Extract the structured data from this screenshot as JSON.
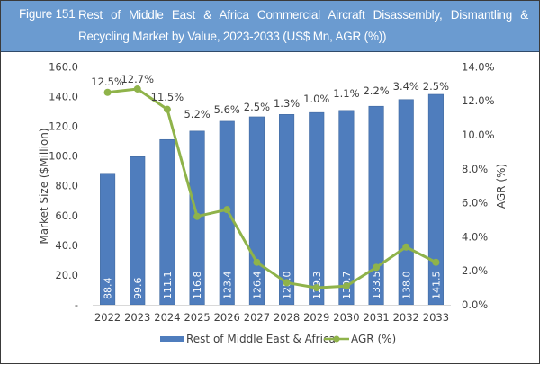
{
  "header": {
    "figure_label": "Figure 151",
    "title": "Rest of Middle East & Africa Commercial Aircraft Disassembly, Dismantling & Recycling Market by Value, 2023-2033 (US$ Mn, AGR (%))"
  },
  "colors": {
    "header_bg": "#6b9bd0",
    "bar": "#4f7dbd",
    "line": "#8fb34a",
    "text": "#404040"
  },
  "chart_data": {
    "type": "bar",
    "title": "Rest of Middle East & Africa Commercial Aircraft Disassembly, Dismantling & Recycling Market by Value, 2023-2033 (US$ Mn, AGR (%))",
    "categories": [
      "2022",
      "2023",
      "2024",
      "2025",
      "2026",
      "2027",
      "2028",
      "2029",
      "2030",
      "2031",
      "2032",
      "2033"
    ],
    "series": [
      {
        "name": "Rest of Middle East & Africa",
        "type": "bar",
        "axis": "left",
        "values": [
          88.4,
          99.6,
          111.1,
          116.8,
          123.4,
          126.4,
          128.0,
          129.3,
          130.7,
          133.5,
          138.0,
          141.5
        ],
        "labels": [
          "88.4",
          "99.6",
          "111.1",
          "116.8",
          "123.4",
          "126.4",
          "128.0",
          "129.3",
          "130.7",
          "133.5",
          "138.0",
          "141.5"
        ]
      },
      {
        "name": "AGR (%)",
        "type": "line",
        "axis": "right",
        "values": [
          12.5,
          12.7,
          11.5,
          5.2,
          5.6,
          2.5,
          1.3,
          1.0,
          1.1,
          2.2,
          3.4,
          2.5
        ],
        "labels": [
          "12.5%",
          "12.7%",
          "11.5%",
          "5.2%",
          "5.6%",
          "2.5%",
          "1.3%",
          "1.0%",
          "1.1%",
          "2.2%",
          "3.4%",
          "2.5%"
        ]
      }
    ],
    "ylabel": "Market Size ($Million)",
    "y2label": "AGR (%)",
    "xlabel": "",
    "ylim": [
      0,
      160
    ],
    "y2lim": [
      0,
      14
    ],
    "yticks": [
      "-",
      "20.0",
      "40.0",
      "60.0",
      "80.0",
      "100.0",
      "120.0",
      "140.0",
      "160.0"
    ],
    "y2ticks": [
      "0.0%",
      "2.0%",
      "4.0%",
      "6.0%",
      "8.0%",
      "10.0%",
      "12.0%",
      "14.0%"
    ],
    "grid": false,
    "legend": "bottom",
    "legend_entries": [
      "Rest of Middle East & Africa",
      "AGR (%)"
    ]
  }
}
